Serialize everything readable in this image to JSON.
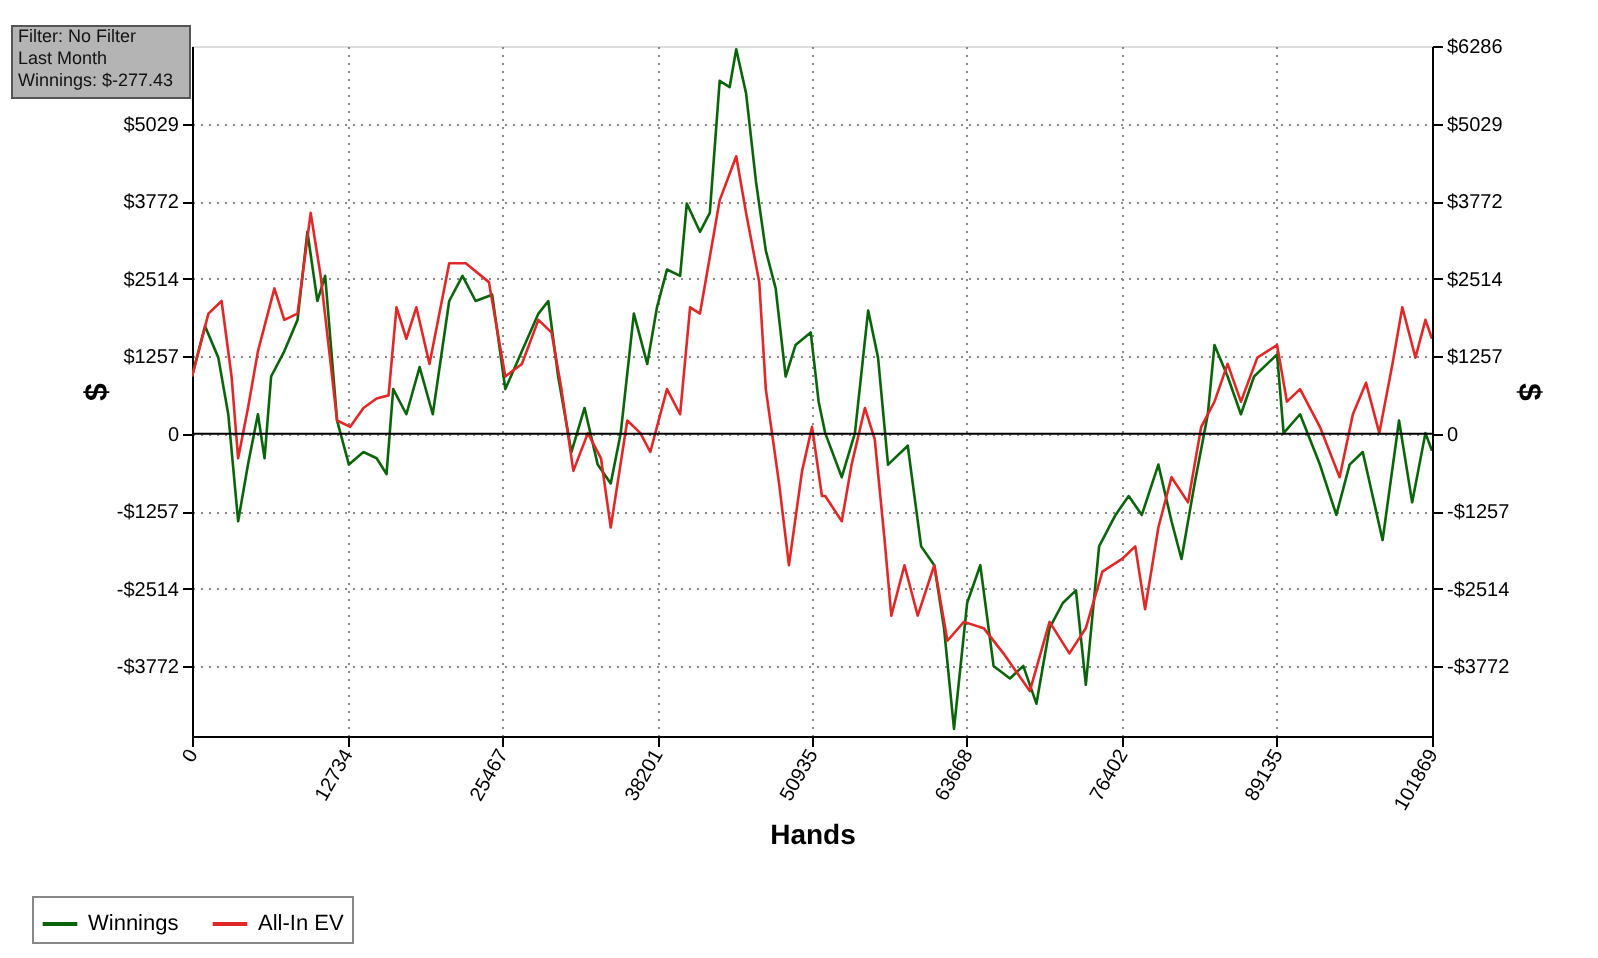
{
  "chart_data": {
    "type": "line",
    "xlabel": "Hands",
    "ylabel": "$",
    "y2label": "$",
    "annotations": [
      "Filter: No Filter",
      "Last Month",
      "Winnings: $-277.43"
    ],
    "xlim": [
      0,
      101869
    ],
    "xticks": [
      0,
      12734,
      25467,
      38201,
      50935,
      63668,
      76402,
      89135,
      101869
    ],
    "ylim": [
      -4900,
      6286
    ],
    "yticks": [
      {
        "value": -3772,
        "label": "-$3772"
      },
      {
        "value": -2514,
        "label": "-$2514"
      },
      {
        "value": -1257,
        "label": "-$1257"
      },
      0,
      {
        "value": 1257,
        "label": "$1257"
      },
      {
        "value": 2514,
        "label": "$2514"
      },
      {
        "value": 3772,
        "label": "$3772"
      },
      {
        "value": 5029,
        "label": "$5029"
      }
    ],
    "y2lim": [
      -4900,
      6286
    ],
    "y2ticks": [
      {
        "value": -3772,
        "label": "-$3772"
      },
      {
        "value": -2514,
        "label": "-$2514"
      },
      {
        "value": -1257,
        "label": "-$1257"
      },
      0,
      {
        "value": 1257,
        "label": "$1257"
      },
      {
        "value": 2514,
        "label": "$2514"
      },
      {
        "value": 3772,
        "label": "$3772"
      },
      {
        "value": 5029,
        "label": "$5029"
      },
      {
        "value": 6286,
        "label": "$6286"
      }
    ],
    "grid": true,
    "legend": "bottom left",
    "line_style": "solid",
    "ref_lines": [
      {
        "axis": "y",
        "value": 0,
        "label": null,
        "color": "#000000"
      }
    ],
    "series": [
      {
        "name": "Winnings",
        "color": "#0a640a",
        "x": [
          0,
          1075,
          2160,
          2980,
          3790,
          4600,
          5415,
          5960,
          6500,
          7580,
          8670,
          9480,
          10300,
          10940,
          11920,
          12890,
          14085,
          15170,
          15980,
          16530,
          17610,
          18700,
          19780,
          21130,
          22220,
          23300,
          24660,
          25740,
          27100,
          28460,
          29270,
          30080,
          31170,
          32250,
          33330,
          34400,
          35220,
          36300,
          37400,
          38200,
          39020,
          40100,
          40650,
          41730,
          42540,
          43350,
          44170,
          44710,
          45520,
          46330,
          47140,
          47950,
          48770,
          49580,
          50830,
          51480,
          52020,
          53380,
          54460,
          55550,
          56360,
          57180,
          58800,
          59900,
          60980,
          61780,
          62600,
          63680,
          64760,
          65850,
          67200,
          68290,
          69370,
          70450,
          71540,
          72620,
          73430,
          74520,
          75870,
          76950,
          78030,
          79390,
          80470,
          81290,
          82370,
          83450,
          84000,
          85080,
          86170,
          87250,
          88330,
          89140,
          89680,
          91030,
          92660,
          94010,
          95100,
          96180,
          97810,
          99160,
          100240,
          101330,
          101869
        ],
        "values": [
          928,
          1744,
          1234,
          316,
          -1418,
          -500,
          316,
          -398,
          928,
          1336,
          1846,
          3274,
          2152,
          2560,
          214,
          -500,
          -296,
          -398,
          -653,
          724,
          316,
          1081,
          316,
          2152,
          2560,
          2152,
          2254,
          724,
          1336,
          1948,
          2152,
          928,
          -296,
          418,
          -500,
          -806,
          10,
          1948,
          1132,
          2050,
          2662,
          2560,
          3733,
          3274,
          3580,
          5722,
          5620,
          6232,
          5518,
          4090,
          2968,
          2356,
          928,
          1438,
          1642,
          520,
          10,
          -704,
          10,
          1999,
          1234,
          -500,
          -194,
          -1826,
          -2132,
          -3152,
          -4784,
          -2744,
          -2132,
          -3764,
          -3968,
          -3764,
          -4376,
          -3152,
          -2744,
          -2540,
          -4070,
          -1826,
          -1316,
          -1010,
          -1316,
          -500,
          -1418,
          -2030,
          -806,
          316,
          1438,
          928,
          316,
          928,
          1132,
          1285,
          10,
          316,
          -500,
          -1316,
          -500,
          -296,
          -1724,
          214,
          -1112,
          10,
          -277
        ]
      },
      {
        "name": "All-In EV",
        "color": "#e02828",
        "x": [
          0,
          1350,
          2430,
          3250,
          3790,
          4600,
          5415,
          6770,
          7580,
          8670,
          9750,
          10570,
          11920,
          13000,
          14085,
          15170,
          16150,
          16800,
          17610,
          18430,
          19510,
          21130,
          22490,
          24390,
          25740,
          27100,
          28460,
          29540,
          30350,
          31330,
          32520,
          33600,
          34400,
          35760,
          36840,
          37650,
          39020,
          40100,
          40920,
          41730,
          42540,
          43350,
          44710,
          45520,
          46600,
          47140,
          48230,
          49040,
          50120,
          50940,
          51750,
          52020,
          53380,
          54190,
          55280,
          56090,
          56900,
          57450,
          58530,
          59620,
          60980,
          62060,
          63410,
          65040,
          66660,
          68830,
          70450,
          72080,
          73430,
          74790,
          76410,
          77490,
          78300,
          79390,
          80470,
          81830,
          82910,
          84000,
          85080,
          86170,
          87520,
          89140,
          89950,
          91030,
          92660,
          94280,
          95370,
          96450,
          97540,
          98620,
          99430,
          100510,
          101330,
          101869
        ],
        "values": [
          928,
          1948,
          2152,
          928,
          -398,
          418,
          1336,
          2356,
          1846,
          1948,
          3580,
          2560,
          214,
          112,
          418,
          571,
          622,
          2050,
          1540,
          2050,
          1132,
          2764,
          2764,
          2458,
          928,
          1132,
          1846,
          1642,
          724,
          -602,
          10,
          -398,
          -1520,
          214,
          10,
          -296,
          724,
          316,
          2050,
          1948,
          2866,
          3784,
          4498,
          3580,
          2458,
          724,
          -806,
          -2132,
          -602,
          112,
          -1010,
          -1010,
          -1418,
          -500,
          418,
          -92,
          -1724,
          -2948,
          -2132,
          -2948,
          -2132,
          -3356,
          -3050,
          -3152,
          -3560,
          -4172,
          -3050,
          -3560,
          -3152,
          -2234,
          -2030,
          -1826,
          -2846,
          -1520,
          -704,
          -1112,
          112,
          520,
          1132,
          520,
          1234,
          1438,
          520,
          724,
          112,
          -704,
          316,
          826,
          10,
          1132,
          2050,
          1234,
          1846,
          1540
        ]
      }
    ]
  }
}
